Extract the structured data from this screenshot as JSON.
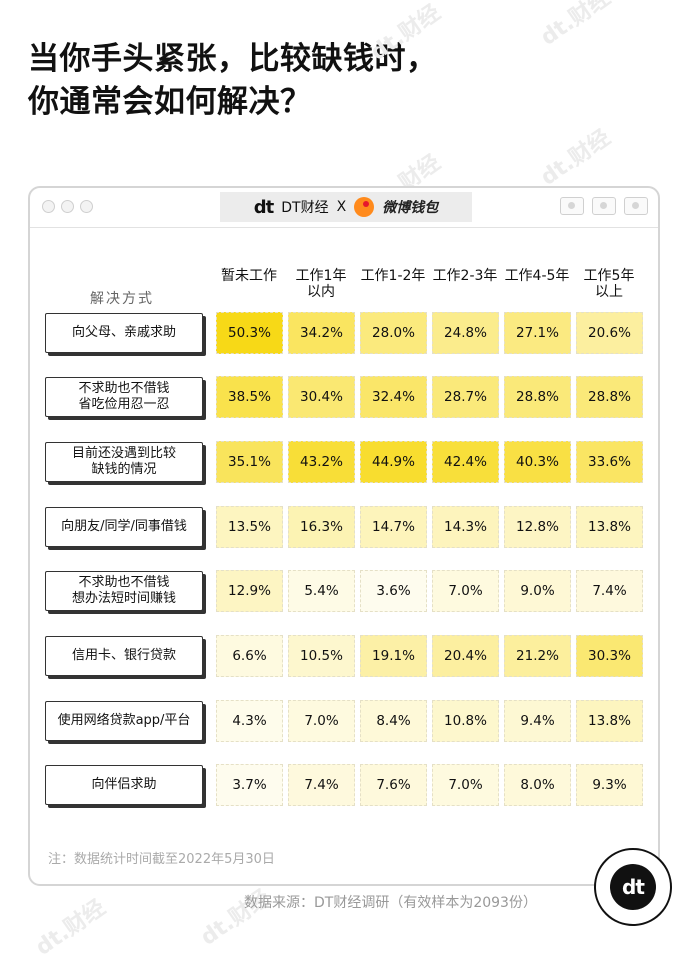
{
  "title_line1": "当你手头紧张，比较缺钱时，",
  "title_line2": "你通常会如何解决？",
  "titlebar": {
    "brand1": "DT财经",
    "x": "X",
    "brand2": "微博钱包",
    "logo_text": "dt"
  },
  "watermark_text": "dt.财经",
  "chart_data": {
    "type": "table",
    "row_header": "解决方式",
    "columns": [
      "暂未工作",
      "工作1年以内",
      "工作1-2年",
      "工作2-3年",
      "工作4-5年",
      "工作5年以上"
    ],
    "columns_display": [
      [
        "暂未工作"
      ],
      [
        "工作1年",
        "以内"
      ],
      [
        "工作1-2年"
      ],
      [
        "工作2-3年"
      ],
      [
        "工作4-5年"
      ],
      [
        "工作5年",
        "以上"
      ]
    ],
    "rows": [
      {
        "label": [
          "向父母、亲戚求助"
        ],
        "values": [
          50.3,
          34.2,
          28.0,
          24.8,
          27.1,
          20.6
        ]
      },
      {
        "label": [
          "不求助也不借钱",
          "省吃俭用忍一忍"
        ],
        "values": [
          38.5,
          30.4,
          32.4,
          28.7,
          28.8,
          28.8
        ]
      },
      {
        "label": [
          "目前还没遇到比较",
          "缺钱的情况"
        ],
        "values": [
          35.1,
          43.2,
          44.9,
          42.4,
          40.3,
          33.6
        ]
      },
      {
        "label": [
          "向朋友/同学/同事借钱"
        ],
        "values": [
          13.5,
          16.3,
          14.7,
          14.3,
          12.8,
          13.8
        ]
      },
      {
        "label": [
          "不求助也不借钱",
          "想办法短时间赚钱"
        ],
        "values": [
          12.9,
          5.4,
          3.6,
          7.0,
          9.0,
          7.4
        ]
      },
      {
        "label": [
          "信用卡、银行贷款"
        ],
        "values": [
          6.6,
          10.5,
          19.1,
          20.4,
          21.2,
          30.3
        ]
      },
      {
        "label": [
          "使用网络贷款app/平台"
        ],
        "values": [
          4.3,
          7.0,
          8.4,
          10.8,
          9.4,
          13.8
        ]
      },
      {
        "label": [
          "向伴侣求助"
        ],
        "values": [
          3.7,
          7.4,
          7.6,
          7.0,
          8.0,
          9.3
        ]
      }
    ],
    "value_suffix": "%",
    "color_scale": {
      "min_color": "#ffffff",
      "max_color": "#f7d917"
    }
  },
  "note": "注：数据统计时间截至2022年5月30日",
  "source": "数据来源：DT财经调研（有效样本为2093份）"
}
